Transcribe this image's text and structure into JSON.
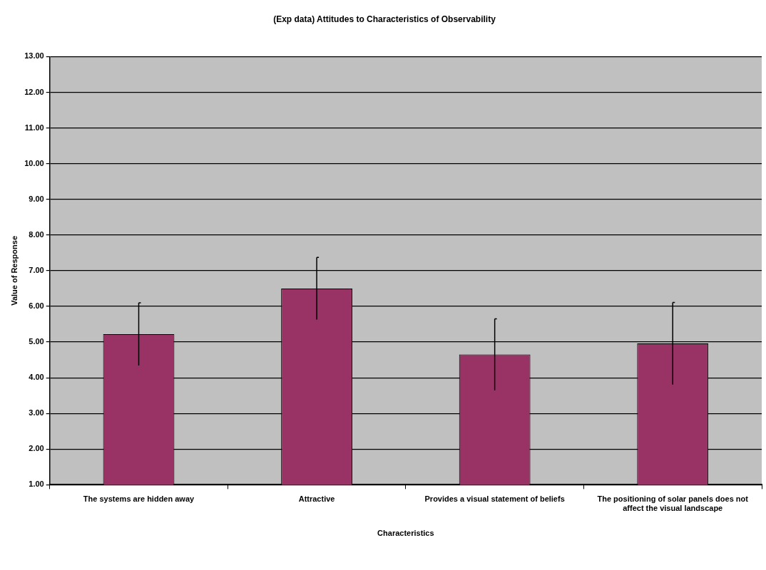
{
  "chart_data": {
    "type": "bar",
    "title": "(Exp data) Attitudes to Characteristics of Observability",
    "xlabel": "Characteristics",
    "ylabel": "Value of Response",
    "categories": [
      "The systems are hidden away",
      "Attractive",
      "Provides a visual statement of beliefs",
      "The positioning of solar panels does not affect the visual landscape"
    ],
    "values": [
      5.22,
      6.5,
      4.65,
      4.96
    ],
    "color": "#993366",
    "errors": [
      0.88,
      0.87,
      1.0,
      1.15
    ],
    "ylim": [
      1,
      13
    ],
    "yticks": [
      {
        "value": 1,
        "label": "1.00"
      },
      {
        "value": 2,
        "label": "2.00"
      },
      {
        "value": 3,
        "label": "3.00"
      },
      {
        "value": 4,
        "label": "4.00"
      },
      {
        "value": 5,
        "label": "5.00"
      },
      {
        "value": 6,
        "label": "6.00"
      },
      {
        "value": 7,
        "label": "7.00"
      },
      {
        "value": 8,
        "label": "8.00"
      },
      {
        "value": 9,
        "label": "9.00"
      },
      {
        "value": 10,
        "label": "10.00"
      },
      {
        "value": 11,
        "label": "11.00"
      },
      {
        "value": 12,
        "label": "12.00"
      },
      {
        "value": 13,
        "label": "13.00"
      }
    ],
    "grid": "y",
    "legend": false
  }
}
